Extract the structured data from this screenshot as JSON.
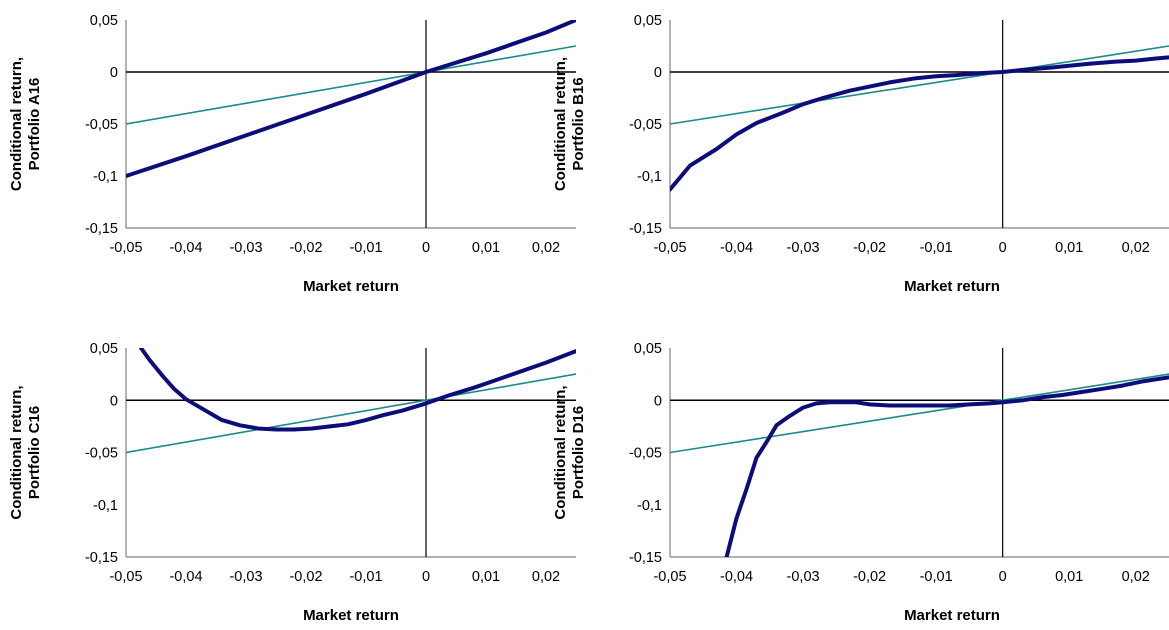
{
  "colors": {
    "thin_series": "#1a8a8a",
    "thick_series": "#0d0d7a",
    "axis": "#000000",
    "frame": "#808080"
  },
  "chart_data": [
    {
      "type": "line",
      "xlabel": "Market return",
      "ylabel": [
        "Conditional return,",
        "Portfolio A16"
      ],
      "xlim": [
        -0.05,
        0.025
      ],
      "ylim": [
        -0.15,
        0.05
      ],
      "x_ticks": [
        "-0,05",
        "-0,04",
        "-0,03",
        "-0,02",
        "-0,01",
        "0",
        "0,01",
        "0,02"
      ],
      "y_ticks": [
        "0,05",
        "0",
        "-0,05",
        "-0,1",
        "-0,15"
      ],
      "grid": false,
      "series": [
        {
          "x": [
            -0.05,
            0.025
          ],
          "y": [
            -0.05,
            0.025
          ]
        },
        {
          "x": [
            -0.05,
            -0.04,
            -0.03,
            -0.02,
            -0.01,
            0,
            0.01,
            0.02,
            0.025
          ],
          "y": [
            -0.1,
            -0.081,
            -0.061,
            -0.041,
            -0.021,
            0.0,
            0.018,
            0.038,
            0.05
          ]
        }
      ]
    },
    {
      "type": "line",
      "xlabel": "Market return",
      "ylabel": [
        "Conditional return,",
        "Portfolio B16"
      ],
      "xlim": [
        -0.05,
        0.025
      ],
      "ylim": [
        -0.15,
        0.05
      ],
      "x_ticks": [
        "-0,05",
        "-0,04",
        "-0,03",
        "-0,02",
        "-0,01",
        "0",
        "0,01",
        "0,02"
      ],
      "y_ticks": [
        "0,05",
        "0",
        "-0,05",
        "-0,1",
        "-0,15"
      ],
      "grid": false,
      "series": [
        {
          "x": [
            -0.05,
            0.025
          ],
          "y": [
            -0.05,
            0.025
          ]
        },
        {
          "x": [
            -0.05,
            -0.047,
            -0.043,
            -0.04,
            -0.037,
            -0.033,
            -0.03,
            -0.027,
            -0.023,
            -0.02,
            -0.017,
            -0.013,
            -0.01,
            -0.007,
            -0.003,
            0,
            0.003,
            0.007,
            0.01,
            0.013,
            0.017,
            0.02,
            0.023,
            0.025
          ],
          "y": [
            -0.113,
            -0.09,
            -0.074,
            -0.06,
            -0.049,
            -0.039,
            -0.031,
            -0.025,
            -0.018,
            -0.014,
            -0.01,
            -0.006,
            -0.004,
            -0.003,
            -0.001,
            0,
            0.002,
            0.004,
            0.006,
            0.008,
            0.01,
            0.011,
            0.013,
            0.014
          ]
        }
      ]
    },
    {
      "type": "line",
      "xlabel": "Market return",
      "ylabel": [
        "Conditional return,",
        "Portfolio C16"
      ],
      "xlim": [
        -0.05,
        0.025
      ],
      "ylim": [
        -0.15,
        0.05
      ],
      "x_ticks": [
        "-0,05",
        "-0,04",
        "-0,03",
        "-0,02",
        "-0,01",
        "0",
        "0,01",
        "0,02"
      ],
      "y_ticks": [
        "0,05",
        "0",
        "-0,05",
        "-0,1",
        "-0,15"
      ],
      "grid": false,
      "series": [
        {
          "x": [
            -0.05,
            0.025
          ],
          "y": [
            -0.05,
            0.025
          ]
        },
        {
          "x": [
            -0.0475,
            -0.046,
            -0.044,
            -0.042,
            -0.04,
            -0.037,
            -0.034,
            -0.031,
            -0.028,
            -0.025,
            -0.022,
            -0.019,
            -0.016,
            -0.013,
            -0.01,
            -0.007,
            -0.004,
            0,
            0.004,
            0.008,
            0.012,
            0.016,
            0.02,
            0.025
          ],
          "y": [
            0.05,
            0.038,
            0.024,
            0.011,
            0.001,
            -0.009,
            -0.019,
            -0.024,
            -0.027,
            -0.028,
            -0.028,
            -0.027,
            -0.025,
            -0.023,
            -0.019,
            -0.014,
            -0.01,
            -0.003,
            0.005,
            0.012,
            0.02,
            0.028,
            0.036,
            0.047
          ]
        }
      ]
    },
    {
      "type": "line",
      "xlabel": "Market return",
      "ylabel": [
        "Conditional return,",
        "Portfolio D16"
      ],
      "xlim": [
        -0.05,
        0.025
      ],
      "ylim": [
        -0.15,
        0.05
      ],
      "x_ticks": [
        "-0,05",
        "-0,04",
        "-0,03",
        "-0,02",
        "-0,01",
        "0",
        "0,01",
        "0,02"
      ],
      "y_ticks": [
        "0,05",
        "0",
        "-0,05",
        "-0,1",
        "-0,15"
      ],
      "grid": false,
      "series": [
        {
          "x": [
            -0.05,
            0.025
          ],
          "y": [
            -0.05,
            0.025
          ]
        },
        {
          "x": [
            -0.0415,
            -0.04,
            -0.0385,
            -0.037,
            -0.0355,
            -0.034,
            -0.032,
            -0.03,
            -0.028,
            -0.026,
            -0.024,
            -0.022,
            -0.02,
            -0.017,
            -0.014,
            -0.011,
            -0.008,
            -0.005,
            -0.002,
            0,
            0.003,
            0.006,
            0.009,
            0.012,
            0.015,
            0.018,
            0.021,
            0.025
          ],
          "y": [
            -0.15,
            -0.113,
            -0.085,
            -0.055,
            -0.04,
            -0.024,
            -0.015,
            -0.007,
            -0.003,
            -0.002,
            -0.002,
            -0.002,
            -0.004,
            -0.005,
            -0.005,
            -0.005,
            -0.005,
            -0.004,
            -0.003,
            -0.002,
            0.0,
            0.003,
            0.005,
            0.008,
            0.011,
            0.014,
            0.018,
            0.022
          ]
        }
      ]
    }
  ]
}
